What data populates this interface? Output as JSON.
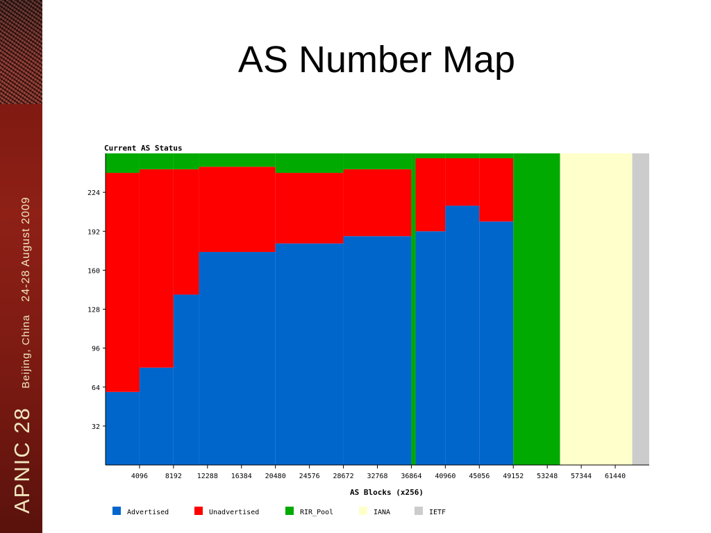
{
  "sidebar": {
    "event_name": "APNIC 28",
    "event_place": "Beijing, China",
    "event_dates": "24-28 August 2009"
  },
  "slide": {
    "title": "AS Number Map"
  },
  "chart_data": {
    "type": "bar",
    "stacked": true,
    "title": "Current AS Status",
    "xlabel": "AS Blocks (x256)",
    "ylabel": "",
    "xlim": [
      0,
      65536
    ],
    "ylim": [
      0,
      256
    ],
    "xticks": [
      4096,
      8192,
      12288,
      16384,
      20480,
      24576,
      28672,
      32768,
      36864,
      40960,
      45056,
      49152,
      53248,
      57344,
      61440
    ],
    "yticks": [
      32,
      64,
      96,
      128,
      160,
      192,
      224
    ],
    "grid": false,
    "legend_position": "bottom",
    "series": [
      {
        "name": "Advertised",
        "color": "#0066cc"
      },
      {
        "name": "Unadvertised",
        "color": "#ff0000"
      },
      {
        "name": "RIR_Pool",
        "color": "#00aa00"
      },
      {
        "name": "IANA",
        "color": "#ffffcc"
      },
      {
        "name": "IETF",
        "color": "#cccccc"
      }
    ],
    "segments": [
      {
        "x_start": 0,
        "x_end": 4096,
        "advertised": 60,
        "unadvertised": 180,
        "rir_pool": 16
      },
      {
        "x_start": 4096,
        "x_end": 8192,
        "advertised": 80,
        "unadvertised": 163,
        "rir_pool": 13
      },
      {
        "x_start": 8192,
        "x_end": 11264,
        "advertised": 140,
        "unadvertised": 103,
        "rir_pool": 13
      },
      {
        "x_start": 11264,
        "x_end": 20480,
        "advertised": 175,
        "unadvertised": 70,
        "rir_pool": 11
      },
      {
        "x_start": 20480,
        "x_end": 28672,
        "advertised": 182,
        "unadvertised": 58,
        "rir_pool": 16
      },
      {
        "x_start": 28672,
        "x_end": 36864,
        "advertised": 188,
        "unadvertised": 55,
        "rir_pool": 13
      },
      {
        "x_start": 36864,
        "x_end": 37376,
        "advertised": 0,
        "unadvertised": 0,
        "rir_pool": 256
      },
      {
        "x_start": 37376,
        "x_end": 40960,
        "advertised": 192,
        "unadvertised": 60,
        "rir_pool": 4
      },
      {
        "x_start": 40960,
        "x_end": 45056,
        "advertised": 213,
        "unadvertised": 39,
        "rir_pool": 4
      },
      {
        "x_start": 45056,
        "x_end": 49152,
        "advertised": 200,
        "unadvertised": 52,
        "rir_pool": 4
      },
      {
        "x_start": 49152,
        "x_end": 54784,
        "advertised": 0,
        "unadvertised": 0,
        "rir_pool": 256
      },
      {
        "x_start": 54784,
        "x_end": 63488,
        "iana": 256
      },
      {
        "x_start": 63488,
        "x_end": 65536,
        "ietf": 256
      }
    ]
  }
}
